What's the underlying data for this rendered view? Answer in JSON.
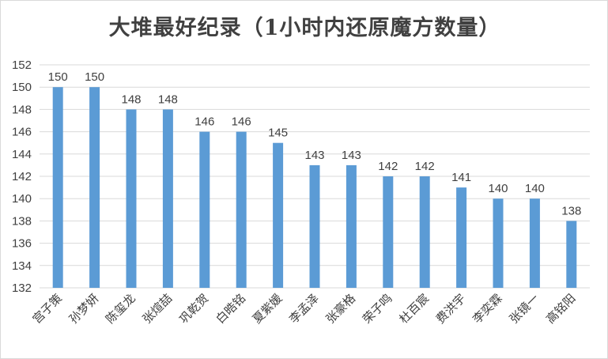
{
  "chart_data": {
    "type": "bar",
    "title": "大堆最好纪录（1小时内还原魔方数量）",
    "xlabel": "",
    "ylabel": "",
    "categories": [
      "宫子策",
      "孙梦妍",
      "陈玺龙",
      "张煊喆",
      "巩乾贺",
      "白晧铭",
      "夏紫媛",
      "李孟泽",
      "张豪格",
      "荣子鸣",
      "杜百宸",
      "费洪宇",
      "李奕霖",
      "张镜一",
      "高铭阳"
    ],
    "values": [
      150,
      150,
      148,
      148,
      146,
      146,
      145,
      143,
      143,
      142,
      142,
      141,
      140,
      140,
      138
    ],
    "ylim": [
      132,
      152
    ],
    "yticks": [
      132,
      134,
      136,
      138,
      140,
      142,
      144,
      146,
      148,
      150,
      152
    ],
    "grid": true,
    "data_labels": true,
    "bar_color": "#5b9bd5",
    "grid_color": "#d9d9d9"
  }
}
